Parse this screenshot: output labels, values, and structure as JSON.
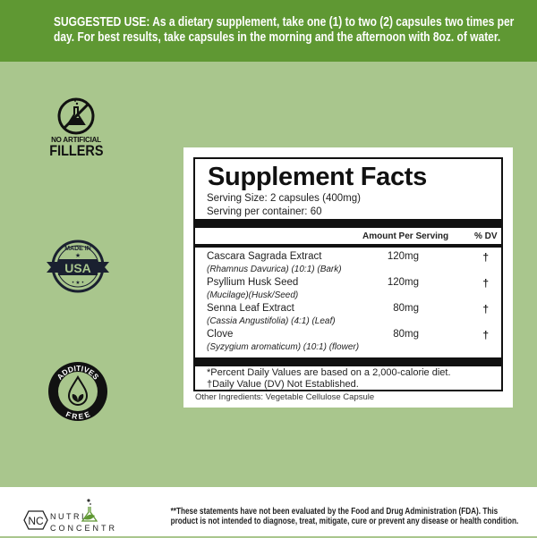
{
  "suggested_use": {
    "line1": "SUGGESTED USE: As a dietary supplement, take one (1) to two (2) capsules two times per",
    "line2": "day. For best results, take capsules in the morning and the afternoon with 8oz. of water."
  },
  "badges": {
    "fillers": {
      "icon": "no-flask-icon",
      "small": "NO ARTIFICIAL",
      "big": "FILLERS"
    },
    "usa": {
      "icon": "made-in-usa-seal",
      "top": "MADE IN",
      "center": "USA"
    },
    "additives": {
      "icon": "additives-free-seal",
      "top": "ADDITIVES",
      "bottom": "FREE"
    }
  },
  "facts": {
    "title": "Supplement Facts",
    "serving_size": "Serving Size: 2 capsules (400mg)",
    "servings": "Serving per container: 60",
    "col_amount": "Amount Per Serving",
    "col_dv": "% DV",
    "rows": [
      {
        "name": "Cascara Sagrada Extract",
        "sub": "(Rhamnus Davurica) (10:1) (Bark)",
        "amount": "120mg",
        "dv": "†"
      },
      {
        "name": "Psyllium Husk Seed",
        "sub": "(Mucilage)(Husk/Seed)",
        "amount": "120mg",
        "dv": "†"
      },
      {
        "name": "Senna Leaf Extract",
        "sub": "(Cassia Angustifolia) (4:1) (Leaf)",
        "amount": "80mg",
        "dv": "†"
      },
      {
        "name": "Clove",
        "sub": "(Syzygium aromaticum) (10:1) (flower)",
        "amount": "80mg",
        "dv": "†"
      }
    ],
    "footnote1": "*Percent Daily Values are based on a 2,000-calorie diet.",
    "footnote2": "†Daily Value (DV) Not Established.",
    "other": "Other Ingredients: Vegetable Cellulose Capsule"
  },
  "footer": {
    "brand": {
      "mark": "NC",
      "line1": "NUTRI",
      "line2": "CONCENTRA"
    },
    "disclaimer1": "**These statements have not been evaluated by the Food and Drug Administration (FDA). This",
    "disclaimer2": "product is not intended to diagnose, treat, mitigate, cure or prevent any disease or health condition."
  },
  "colors": {
    "top_band": "#5f9833",
    "background": "#a9c68d",
    "dark": "#111111"
  }
}
